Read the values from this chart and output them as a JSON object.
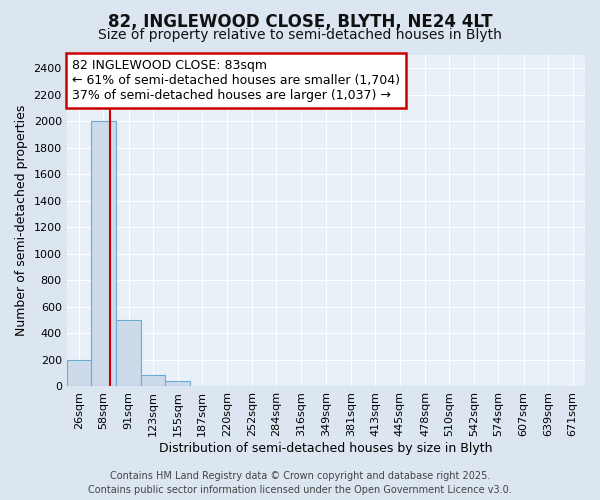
{
  "title": "82, INGLEWOOD CLOSE, BLYTH, NE24 4LT",
  "subtitle": "Size of property relative to semi-detached houses in Blyth",
  "xlabel": "Distribution of semi-detached houses by size in Blyth",
  "ylabel": "Number of semi-detached properties",
  "footer_line1": "Contains HM Land Registry data © Crown copyright and database right 2025.",
  "footer_line2": "Contains public sector information licensed under the Open Government Licence v3.0.",
  "bin_labels": [
    "26sqm",
    "58sqm",
    "91sqm",
    "123sqm",
    "155sqm",
    "187sqm",
    "220sqm",
    "252sqm",
    "284sqm",
    "316sqm",
    "349sqm",
    "381sqm",
    "413sqm",
    "445sqm",
    "478sqm",
    "510sqm",
    "542sqm",
    "574sqm",
    "607sqm",
    "639sqm",
    "671sqm"
  ],
  "bin_edges": [
    26,
    58,
    91,
    123,
    155,
    187,
    220,
    252,
    284,
    316,
    349,
    381,
    413,
    445,
    478,
    510,
    542,
    574,
    607,
    639,
    671
  ],
  "bar_heights": [
    200,
    2000,
    500,
    90,
    40,
    0,
    0,
    0,
    0,
    0,
    0,
    0,
    0,
    0,
    0,
    0,
    0,
    0,
    0,
    0
  ],
  "bar_color": "#ccdaea",
  "bar_edge_color": "#6aaad4",
  "property_size": 83,
  "red_line_color": "#cc0000",
  "annotation_line1": "82 INGLEWOOD CLOSE: 83sqm",
  "annotation_line2": "← 61% of semi-detached houses are smaller (1,704)",
  "annotation_line3": "37% of semi-detached houses are larger (1,037) →",
  "annotation_box_edge": "#cc0000",
  "ylim": [
    0,
    2500
  ],
  "yticks": [
    0,
    200,
    400,
    600,
    800,
    1000,
    1200,
    1400,
    1600,
    1800,
    2000,
    2200,
    2400
  ],
  "background_color": "#dce6f0",
  "plot_bg_color": "#e8f0f8",
  "grid_color": "#ffffff",
  "title_fontsize": 12,
  "subtitle_fontsize": 10,
  "axis_label_fontsize": 9,
  "tick_fontsize": 8,
  "annotation_fontsize": 9,
  "footer_fontsize": 7
}
